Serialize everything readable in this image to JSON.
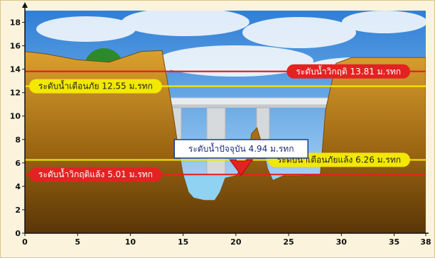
{
  "chart_data": {
    "type": "area",
    "title": "",
    "xlabel": "",
    "ylabel": "",
    "xlim": [
      0,
      38
    ],
    "ylim": [
      0,
      19
    ],
    "x_ticks": [
      0,
      5,
      10,
      15,
      20,
      25,
      30,
      35,
      38
    ],
    "y_ticks": [
      0,
      2,
      4,
      6,
      8,
      10,
      12,
      14,
      16,
      18
    ],
    "riverbed_profile": [
      {
        "x": 0,
        "y": 15.5
      },
      {
        "x": 2,
        "y": 15.3
      },
      {
        "x": 5,
        "y": 14.8
      },
      {
        "x": 8,
        "y": 14.6
      },
      {
        "x": 11,
        "y": 15.5
      },
      {
        "x": 13,
        "y": 15.6
      },
      {
        "x": 13.5,
        "y": 13.0
      },
      {
        "x": 14,
        "y": 10.5
      },
      {
        "x": 14.5,
        "y": 7.5
      },
      {
        "x": 15,
        "y": 5.0
      },
      {
        "x": 15.5,
        "y": 3.5
      },
      {
        "x": 16,
        "y": 3.0
      },
      {
        "x": 17,
        "y": 2.8
      },
      {
        "x": 18,
        "y": 2.8
      },
      {
        "x": 18.5,
        "y": 3.5
      },
      {
        "x": 19,
        "y": 4.7
      },
      {
        "x": 20,
        "y": 4.9
      },
      {
        "x": 21,
        "y": 6.0
      },
      {
        "x": 21.5,
        "y": 8.5
      },
      {
        "x": 22,
        "y": 9.0
      },
      {
        "x": 22.5,
        "y": 7.5
      },
      {
        "x": 23,
        "y": 5.5
      },
      {
        "x": 23.5,
        "y": 4.5
      },
      {
        "x": 24.5,
        "y": 4.9
      },
      {
        "x": 26,
        "y": 4.9
      },
      {
        "x": 28,
        "y": 5.0
      },
      {
        "x": 28.5,
        "y": 10.5
      },
      {
        "x": 29.5,
        "y": 14.5
      },
      {
        "x": 31,
        "y": 15.0
      },
      {
        "x": 35,
        "y": 15.0
      },
      {
        "x": 38,
        "y": 15.0
      }
    ],
    "water_level": 4.94,
    "levels": [
      {
        "label": "ระดับน้ำวิกฤติ 13.81 ม.รทก",
        "value": 13.81,
        "line_color": "#e32222",
        "pill_color": "#e32222",
        "text_color": "#ffffff",
        "side": "right"
      },
      {
        "label": "ระดับน้ำเตือนภัย 12.55 ม.รทก",
        "value": 12.55,
        "line_color": "#f2e800",
        "pill_color": "#f2e800",
        "text_color": "#222222",
        "side": "left"
      },
      {
        "label": "ระดับน้ำเตือนภัยแล้ง 6.26 ม.รทก",
        "value": 6.26,
        "line_color": "#f2e800",
        "pill_color": "#f2e800",
        "text_color": "#222222",
        "side": "right"
      },
      {
        "label": "ระดับน้ำวิกฤติแล้ง 5.01 ม.รทก",
        "value": 5.01,
        "line_color": "#e32222",
        "pill_color": "#e32222",
        "text_color": "#ffffff",
        "side": "left"
      }
    ],
    "current_level": {
      "label": "ระดับน้ำปัจจุบัน 4.94 ม.รทก",
      "value": 4.94,
      "x": 20.5
    }
  },
  "colors": {
    "sky_top": "#2f7fd6",
    "sky_bottom": "#d8ecfa",
    "ground_top": "#d89a2a",
    "ground_bottom": "#5a3606",
    "water": "#8fd2f2",
    "arrow": "#e52020",
    "bridge": "#e9ecee"
  }
}
